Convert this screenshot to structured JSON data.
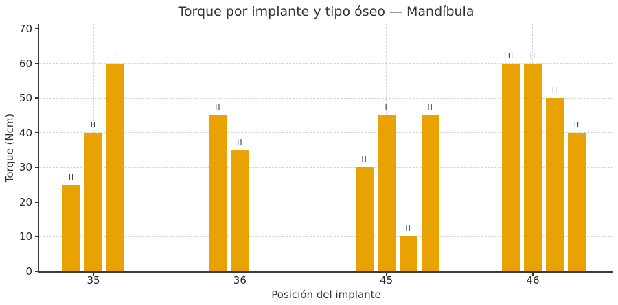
{
  "chart_data": {
    "type": "bar",
    "title": "Torque por implante y tipo óseo — Mandíbula",
    "xlabel": "Posición del implante",
    "ylabel": "Torque (Ncm)",
    "ylim": [
      0,
      70
    ],
    "yticks": [
      0,
      10,
      20,
      30,
      40,
      50,
      60,
      70
    ],
    "categories": [
      "35",
      "36",
      "45",
      "46"
    ],
    "bar_color": "#E8A202",
    "grid": true,
    "legend": null,
    "groups": [
      {
        "position": "35",
        "bars": [
          {
            "value": 25,
            "bone_type": "II"
          },
          {
            "value": 40,
            "bone_type": "II"
          },
          {
            "value": 60,
            "bone_type": "I"
          }
        ]
      },
      {
        "position": "36",
        "bars": [
          {
            "value": 45,
            "bone_type": "II"
          },
          {
            "value": 35,
            "bone_type": "II"
          }
        ]
      },
      {
        "position": "45",
        "bars": [
          {
            "value": 30,
            "bone_type": "II"
          },
          {
            "value": 45,
            "bone_type": "I"
          },
          {
            "value": 10,
            "bone_type": "II"
          },
          {
            "value": 45,
            "bone_type": "II"
          }
        ]
      },
      {
        "position": "46",
        "bars": [
          {
            "value": 60,
            "bone_type": "II"
          },
          {
            "value": 60,
            "bone_type": "II"
          },
          {
            "value": 50,
            "bone_type": "II"
          },
          {
            "value": 40,
            "bone_type": "II"
          }
        ]
      }
    ]
  }
}
